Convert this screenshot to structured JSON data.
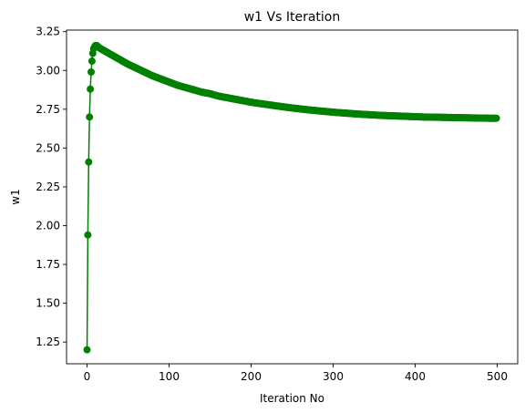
{
  "chart_data": {
    "type": "line",
    "title": "w1 Vs Iteration",
    "xlabel": "Iteration No",
    "ylabel": "w1",
    "xlim": [
      -25,
      525
    ],
    "ylim": [
      1.11,
      3.26
    ],
    "x_ticks": [
      0,
      100,
      200,
      300,
      400,
      500
    ],
    "x_tick_labels": [
      "0",
      "100",
      "200",
      "300",
      "400",
      "500"
    ],
    "y_ticks": [
      1.25,
      1.5,
      1.75,
      2.0,
      2.25,
      2.5,
      2.75,
      3.0,
      3.25
    ],
    "y_tick_labels": [
      "1.25",
      "1.50",
      "1.75",
      "2.00",
      "2.25",
      "2.50",
      "2.75",
      "3.00",
      "3.25"
    ],
    "grid": false,
    "legend": "none",
    "color": "#008000",
    "marker": "circle",
    "series": [
      {
        "x": [
          0,
          1,
          2,
          3,
          4,
          5,
          6,
          7,
          8,
          9,
          10,
          11,
          12,
          13,
          14,
          15,
          20,
          25,
          30,
          40,
          50,
          60,
          70,
          80,
          90,
          100,
          110,
          120,
          130,
          140,
          150,
          160,
          170,
          180,
          190,
          200,
          210,
          220,
          230,
          240,
          250,
          260,
          270,
          280,
          290,
          300,
          310,
          320,
          330,
          340,
          350,
          360,
          370,
          380,
          390,
          400,
          410,
          420,
          430,
          440,
          450,
          460,
          470,
          480,
          490,
          499
        ],
        "y": [
          1.2,
          1.94,
          2.41,
          2.7,
          2.88,
          2.99,
          3.06,
          3.11,
          3.14,
          3.15,
          3.16,
          3.16,
          3.16,
          3.155,
          3.15,
          3.145,
          3.13,
          3.115,
          3.1,
          3.07,
          3.04,
          3.015,
          2.99,
          2.965,
          2.945,
          2.925,
          2.905,
          2.89,
          2.875,
          2.86,
          2.85,
          2.835,
          2.825,
          2.815,
          2.805,
          2.795,
          2.787,
          2.78,
          2.772,
          2.765,
          2.758,
          2.752,
          2.746,
          2.741,
          2.736,
          2.731,
          2.727,
          2.723,
          2.719,
          2.716,
          2.713,
          2.71,
          2.708,
          2.706,
          2.704,
          2.702,
          2.7,
          2.699,
          2.698,
          2.697,
          2.696,
          2.695,
          2.694,
          2.693,
          2.692,
          2.692
        ]
      }
    ]
  }
}
